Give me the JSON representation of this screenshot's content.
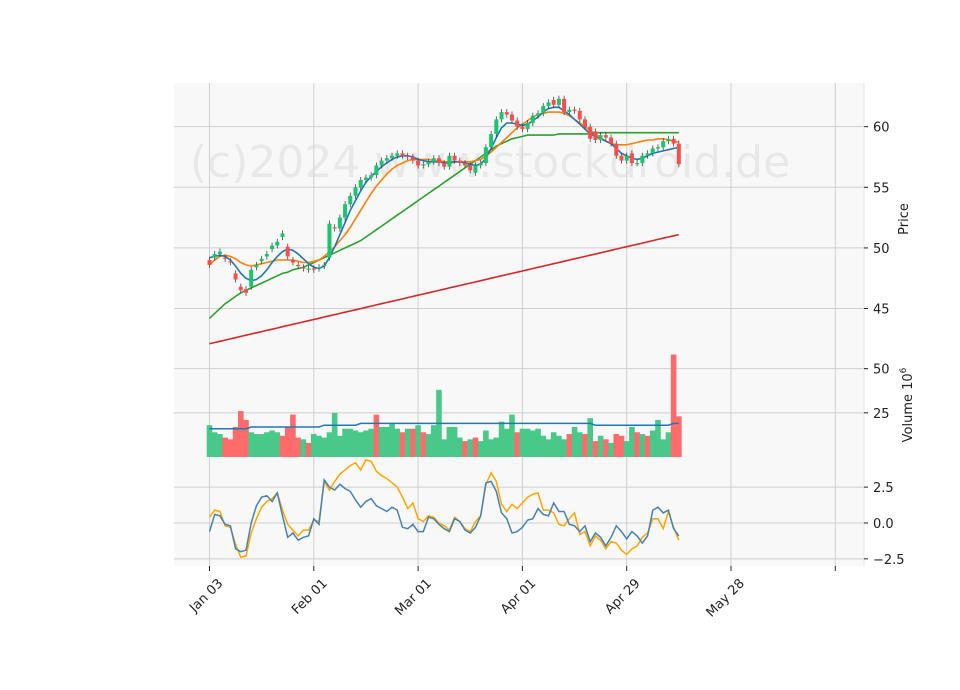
{
  "chart_data": {
    "type": "candlestick",
    "watermark": "(c)2024 www.stockdroid.de",
    "colors": {
      "background": "#f8f8f8",
      "grid": "#cfcfcf",
      "up": "#1ec36f",
      "down": "#ff4d4d",
      "volume_up": "#48c98a",
      "volume_down": "#ff6b6b",
      "ma_short": "#1f77b4",
      "ma_mid": "#ff7f0e",
      "ma_long": "#2ca02c",
      "ma_200": "#d62728",
      "osc_a": "#4682b4",
      "osc_b": "#ffa500"
    },
    "x_ticks": [
      {
        "label": "Jan 03",
        "index": 0
      },
      {
        "label": "Feb 01",
        "index": 20
      },
      {
        "label": "Mar 01",
        "index": 40
      },
      {
        "label": "Apr 01",
        "index": 60
      },
      {
        "label": "Apr 29",
        "index": 80
      },
      {
        "label": "May 28",
        "index": 100
      },
      {
        "label": "",
        "index": 120
      }
    ],
    "price_panel": {
      "ylabel": "Price",
      "ylim": [
        41.5,
        63.6
      ],
      "yticks": [
        45,
        50,
        55,
        60
      ],
      "close": [
        48.6,
        49.5,
        49.7,
        49.1,
        48.8,
        47.4,
        46.5,
        46.3,
        48.2,
        48.6,
        49.1,
        49.5,
        50.2,
        50.5,
        51.2,
        49.3,
        48.8,
        48.5,
        48.3,
        48.3,
        48.2,
        48.4,
        48.6,
        52.0,
        51.6,
        52.5,
        53.6,
        54.3,
        55.0,
        55.6,
        55.8,
        56.0,
        56.8,
        57.2,
        57.4,
        57.6,
        57.8,
        57.6,
        57.5,
        57.2,
        56.8,
        56.9,
        57.1,
        57.4,
        57.0,
        56.7,
        57.6,
        57.2,
        57.0,
        56.8,
        56.4,
        56.8,
        57.0,
        58.3,
        59.4,
        60.6,
        61.2,
        61.0,
        60.5,
        60.0,
        59.8,
        60.3,
        60.9,
        61.1,
        61.7,
        62.0,
        61.8,
        62.3,
        61.2,
        61.4,
        61.3,
        60.6,
        60.0,
        59.0,
        58.9,
        59.3,
        59.1,
        58.6,
        57.6,
        57.2,
        57.6,
        57.0,
        57.0,
        57.6,
        57.8,
        58.2,
        58.3,
        58.8,
        59.0,
        58.6,
        56.9
      ],
      "open": [
        49.0,
        49.2,
        49.5,
        49.2,
        48.9,
        47.9,
        46.8,
        46.6,
        46.8,
        48.4,
        48.9,
        49.3,
        49.9,
        50.2,
        50.9,
        50.1,
        49.0,
        48.6,
        48.4,
        48.2,
        48.3,
        48.3,
        48.5,
        49.2,
        51.7,
        51.6,
        52.5,
        53.6,
        54.3,
        55.0,
        55.6,
        55.8,
        56.0,
        56.8,
        57.2,
        57.4,
        57.6,
        57.8,
        57.6,
        57.5,
        57.2,
        56.8,
        56.9,
        57.1,
        57.4,
        57.0,
        56.7,
        57.6,
        57.2,
        57.0,
        56.8,
        56.2,
        56.8,
        57.0,
        58.3,
        59.4,
        60.6,
        61.2,
        61.0,
        60.5,
        60.0,
        59.8,
        60.3,
        60.9,
        61.1,
        61.7,
        62.2,
        61.8,
        62.3,
        61.2,
        61.4,
        61.3,
        60.6,
        60.0,
        59.6,
        58.9,
        59.3,
        59.1,
        58.6,
        57.6,
        57.2,
        57.8,
        57.0,
        57.0,
        57.6,
        57.8,
        58.2,
        58.3,
        58.8,
        59.0,
        58.6
      ],
      "ma_short": [
        49.2,
        49.3,
        49.4,
        49.3,
        49.0,
        48.5,
        47.9,
        47.5,
        47.3,
        47.4,
        47.7,
        48.2,
        48.8,
        49.3,
        49.7,
        49.9,
        49.8,
        49.5,
        49.1,
        48.7,
        48.4,
        48.3,
        48.5,
        49.2,
        50.1,
        51.1,
        52.1,
        53.1,
        53.9,
        54.7,
        55.4,
        55.9,
        56.3,
        56.7,
        57.0,
        57.3,
        57.5,
        57.6,
        57.6,
        57.5,
        57.3,
        57.2,
        57.1,
        57.1,
        57.1,
        57.0,
        57.0,
        57.1,
        57.1,
        57.0,
        56.9,
        56.8,
        56.9,
        57.4,
        58.2,
        59.1,
        59.9,
        60.3,
        60.3,
        60.2,
        60.1,
        60.2,
        60.5,
        60.8,
        61.2,
        61.5,
        61.6,
        61.6,
        61.3,
        61.0,
        60.6,
        60.2,
        59.8,
        59.4,
        59.2,
        59.0,
        58.8,
        58.6,
        58.2,
        57.8,
        57.6,
        57.4,
        57.3,
        57.4,
        57.6,
        57.8,
        57.9,
        58.0,
        58.1,
        58.2,
        58.3
      ],
      "ma_mid": [
        48.6,
        49.0,
        49.3,
        49.4,
        49.3,
        49.1,
        48.8,
        48.6,
        48.5,
        48.6,
        48.7,
        48.8,
        48.9,
        49.0,
        49.0,
        49.0,
        49.0,
        48.9,
        48.8,
        48.8,
        48.9,
        49.0,
        49.3,
        49.7,
        50.1,
        50.6,
        51.1,
        51.7,
        52.4,
        53.1,
        53.8,
        54.5,
        55.1,
        55.6,
        56.1,
        56.5,
        56.8,
        57.0,
        57.2,
        57.3,
        57.3,
        57.3,
        57.3,
        57.2,
        57.2,
        57.1,
        57.1,
        57.1,
        57.1,
        57.1,
        57.1,
        57.2,
        57.3,
        57.6,
        57.9,
        58.3,
        58.7,
        59.1,
        59.5,
        59.9,
        60.2,
        60.5,
        60.8,
        61.0,
        61.1,
        61.2,
        61.2,
        61.2,
        61.1,
        60.9,
        60.6,
        60.3,
        60.0,
        59.7,
        59.4,
        59.1,
        58.8,
        58.6,
        58.5,
        58.5,
        58.5,
        58.6,
        58.7,
        58.8,
        58.9,
        58.9,
        59.0,
        59.0,
        58.9,
        58.8,
        58.7
      ],
      "ma_long": [
        44.2,
        44.6,
        45.0,
        45.4,
        45.7,
        46.0,
        46.3,
        46.5,
        46.7,
        46.9,
        47.1,
        47.3,
        47.5,
        47.7,
        47.9,
        48.0,
        48.2,
        48.3,
        48.4,
        48.6,
        48.8,
        49.0,
        49.2,
        49.4,
        49.6,
        49.8,
        50.0,
        50.2,
        50.4,
        50.6,
        50.9,
        51.2,
        51.5,
        51.8,
        52.1,
        52.4,
        52.7,
        53.0,
        53.3,
        53.6,
        53.9,
        54.2,
        54.5,
        54.8,
        55.1,
        55.4,
        55.7,
        56.0,
        56.3,
        56.6,
        56.9,
        57.2,
        57.5,
        57.8,
        58.1,
        58.4,
        58.6,
        58.8,
        59.0,
        59.1,
        59.2,
        59.3,
        59.3,
        59.3,
        59.3,
        59.3,
        59.3,
        59.4,
        59.4,
        59.4,
        59.4,
        59.4,
        59.4,
        59.4,
        59.5,
        59.5,
        59.5,
        59.5,
        59.5,
        59.5,
        59.5,
        59.5,
        59.5,
        59.5,
        59.5,
        59.5,
        59.5,
        59.5,
        59.5,
        59.5,
        59.5
      ],
      "ma_200": [
        42.1,
        42.2,
        42.3,
        42.4,
        42.5,
        42.6,
        42.7,
        42.8,
        42.9,
        43.0,
        43.1,
        43.2,
        43.3,
        43.4,
        43.5,
        43.6,
        43.7,
        43.8,
        43.9,
        44.0,
        44.1,
        44.2,
        44.3,
        44.4,
        44.5,
        44.6,
        44.7,
        44.8,
        44.9,
        45.0,
        45.1,
        45.2,
        45.3,
        45.4,
        45.5,
        45.6,
        45.7,
        45.8,
        45.9,
        46.0,
        46.1,
        46.2,
        46.3,
        46.4,
        46.5,
        46.6,
        46.7,
        46.8,
        46.9,
        47.0,
        47.1,
        47.2,
        47.3,
        47.4,
        47.5,
        47.6,
        47.7,
        47.8,
        47.9,
        48.0,
        48.1,
        48.2,
        48.3,
        48.4,
        48.5,
        48.6,
        48.7,
        48.8,
        48.9,
        49.0,
        49.1,
        49.2,
        49.3,
        49.4,
        49.5,
        49.6,
        49.7,
        49.8,
        49.9,
        50.0,
        50.1,
        50.2,
        50.3,
        50.4,
        50.5,
        50.6,
        50.7,
        50.8,
        50.9,
        51.0,
        51.1
      ]
    },
    "volume_panel": {
      "ylabel": "Volume  10^6",
      "ylim": [
        0,
        60
      ],
      "yticks": [
        25,
        50
      ],
      "values": [
        18,
        14,
        13,
        11,
        10,
        17,
        26,
        21,
        14,
        13,
        13,
        14,
        15,
        14,
        12,
        17,
        24,
        11,
        10,
        8,
        13,
        12,
        11,
        14,
        25,
        12,
        16,
        16,
        15,
        14,
        15,
        16,
        24,
        17,
        17,
        19,
        16,
        14,
        16,
        16,
        18,
        14,
        13,
        18,
        38,
        10,
        17,
        17,
        11,
        9,
        10,
        11,
        9,
        15,
        10,
        11,
        20,
        16,
        24,
        14,
        16,
        16,
        15,
        16,
        12,
        10,
        14,
        12,
        10,
        13,
        17,
        14,
        13,
        22,
        9,
        12,
        10,
        8,
        13,
        12,
        9,
        17,
        14,
        13,
        12,
        15,
        21,
        10,
        14,
        58,
        23
      ],
      "up": [
        1,
        1,
        1,
        0,
        0,
        0,
        0,
        0,
        1,
        1,
        1,
        1,
        1,
        1,
        0,
        0,
        0,
        0,
        1,
        0,
        1,
        1,
        1,
        1,
        1,
        1,
        1,
        1,
        1,
        1,
        1,
        1,
        0,
        1,
        1,
        1,
        1,
        0,
        1,
        0,
        1,
        0,
        1,
        1,
        1,
        1,
        1,
        1,
        1,
        0,
        1,
        0,
        1,
        1,
        1,
        1,
        1,
        1,
        1,
        0,
        1,
        1,
        1,
        1,
        1,
        1,
        1,
        1,
        1,
        0,
        1,
        1,
        0,
        1,
        0,
        1,
        0,
        1,
        0,
        0,
        1,
        1,
        0,
        1,
        0,
        1,
        1,
        1,
        1,
        0,
        0
      ],
      "avg": [
        16,
        16,
        16,
        16,
        16,
        16,
        16,
        16,
        17,
        17,
        17,
        17,
        17,
        17,
        17,
        17,
        17,
        17,
        17,
        17,
        17,
        17,
        18,
        18,
        18,
        18,
        18,
        18,
        18,
        19,
        19,
        19,
        19,
        19,
        19,
        19,
        19,
        19,
        19,
        19,
        19,
        19,
        19,
        19,
        19,
        19,
        19,
        19,
        19,
        19,
        19,
        19,
        19,
        19,
        19,
        19,
        19,
        19,
        19,
        19,
        19,
        19,
        19,
        19,
        19,
        19,
        19,
        19,
        19,
        19,
        19,
        19,
        19,
        19,
        18,
        18,
        18,
        18,
        18,
        18,
        18,
        18,
        18,
        18,
        18,
        18,
        18,
        18,
        18,
        19,
        19
      ]
    },
    "oscillator_panel": {
      "ylim": [
        -3.0,
        4.6
      ],
      "yticks": [
        -2.5,
        0.0,
        2.5
      ],
      "series_a": [
        -0.6,
        0.6,
        0.5,
        -0.1,
        -0.2,
        -1.8,
        -2.0,
        -1.9,
        0.0,
        1.2,
        1.8,
        1.9,
        1.5,
        2.1,
        0.5,
        -1.0,
        -0.7,
        -1.2,
        -1.0,
        -0.9,
        0.3,
        -0.1,
        3.0,
        2.5,
        2.3,
        2.7,
        2.4,
        2.2,
        1.6,
        1.1,
        1.5,
        1.7,
        1.2,
        1.0,
        0.8,
        1.1,
        0.9,
        -0.3,
        -0.4,
        -0.1,
        -0.6,
        -0.6,
        0.4,
        0.3,
        -0.1,
        -0.4,
        -0.6,
        0.3,
        0.1,
        -0.5,
        -0.7,
        -0.3,
        0.5,
        2.8,
        2.9,
        2.2,
        0.7,
        0.3,
        -0.7,
        -0.6,
        -0.3,
        0.2,
        0.3,
        1.0,
        0.6,
        0.5,
        1.4,
        0.8,
        0.8,
        -0.1,
        -0.2,
        -0.6,
        -0.2,
        -1.3,
        -0.7,
        -1.0,
        -1.6,
        -1.0,
        -0.2,
        -0.6,
        -1.1,
        -0.6,
        -0.9,
        -1.4,
        -0.9,
        0.9,
        1.1,
        0.7,
        0.9,
        -0.4,
        -0.9
      ],
      "series_b": [
        0.4,
        0.9,
        0.8,
        -0.2,
        -0.3,
        -1.5,
        -2.4,
        -2.3,
        -0.7,
        0.3,
        1.1,
        1.5,
        1.7,
        2.1,
        0.9,
        -0.1,
        -0.5,
        -0.9,
        -0.5,
        -0.5,
        0.2,
        0.1,
        2.9,
        2.3,
        2.9,
        3.4,
        3.7,
        4.0,
        4.2,
        3.7,
        4.4,
        4.3,
        3.6,
        3.3,
        3.1,
        2.8,
        2.5,
        1.8,
        1.0,
        1.4,
        0.3,
        0.1,
        0.5,
        0.4,
        0.0,
        -0.2,
        -0.5,
        0.4,
        0.1,
        -0.4,
        -0.6,
        0.1,
        0.5,
        2.7,
        3.5,
        2.9,
        1.3,
        0.8,
        1.3,
        1.0,
        1.4,
        1.8,
        2.0,
        2.1,
        0.9,
        0.9,
        0.7,
        -0.1,
        -0.2,
        0.3,
        0.7,
        -0.8,
        -0.6,
        -1.6,
        -0.9,
        -1.2,
        -1.8,
        -1.3,
        -1.4,
        -1.9,
        -2.2,
        -1.8,
        -1.6,
        -1.0,
        -0.7,
        0.3,
        0.3,
        -0.4,
        0.8,
        -0.3,
        -1.2
      ]
    }
  }
}
